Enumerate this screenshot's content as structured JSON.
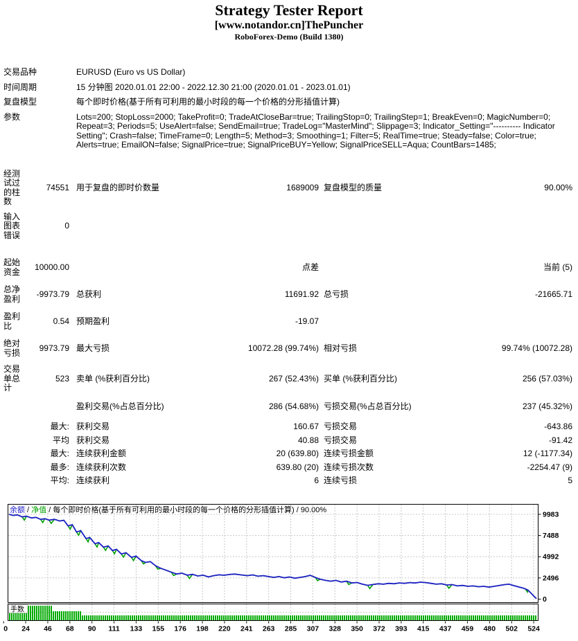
{
  "header": {
    "title": "Strategy Tester Report",
    "subtitle": "[www.notandor.cn]ThePuncher",
    "server": "RoboForex-Demo (Build 1380)"
  },
  "table": {
    "info_rows": [
      {
        "label": "交易品种",
        "value": "EURUSD (Euro vs US Dollar)"
      },
      {
        "label": "时间周期",
        "value": "15 分钟图 2020.01.01 22:00 - 2022.12.30 21:00 (2020.01.01 - 2023.01.01)"
      },
      {
        "label": "复盘模型",
        "value": "每个即时价格(基于所有可利用的最小时段的每一个价格的分形插值计算)"
      },
      {
        "label": "参数",
        "value": "Lots=200; StopLoss=2000; TakeProfit=0; TradeAtCloseBar=true; TrailingStop=0; TrailingStep=1; BreakEven=0; MagicNumber=0; Repeat=3; Periods=5; UseAlert=false; SendEmail=true; TradeLog=\"MasterMind\"; Slippage=3; Indicator_Setting=\"---------- Indicator Setting\"; Crash=false; TimeFrame=0; Length=5; Method=3; Smoothing=1; Filter=5; RealTime=true; Steady=false; Color=true; Alerts=true; EmailON=false; SignalPrice=true; SignalPriceBUY=Yellow; SignalPriceSELL=Aqua; CountBars=1485;"
      }
    ],
    "stat_rows": [
      {
        "c1": "经测试过的柱数",
        "c2": "74551",
        "c3": "用于复盘的即时价数量",
        "c4": "1689009",
        "c5": "复盘模型的质量",
        "c6": "90.00%"
      },
      {
        "c1": "输入图表错误",
        "c2": "0",
        "c3": "",
        "c4": "",
        "c5": "",
        "c6": ""
      },
      {
        "c1": "起始资金",
        "c2": "10000.00",
        "c3": "",
        "c4": "点差",
        "c5": "",
        "c6": "当前 (5)"
      },
      {
        "c1": "总净盈利",
        "c2": "-9973.79",
        "c3": "总获利",
        "c4": "11691.92",
        "c5": "总亏损",
        "c6": "-21665.71"
      },
      {
        "c1": "盈利比",
        "c2": "0.54",
        "c3": "预期盈利",
        "c4": "-19.07",
        "c5": "",
        "c6": ""
      },
      {
        "c1": "绝对亏损",
        "c2": "9973.79",
        "c3": "最大亏损",
        "c4": "10072.28 (99.74%)",
        "c5": "相对亏损",
        "c6": "99.74% (10072.28)"
      },
      {
        "c1": "交易单总计",
        "c2": "523",
        "c3": "卖单 (%获利百分比)",
        "c4": "267 (52.43%)",
        "c5": "买单 (%获利百分比)",
        "c6": "256 (57.03%)"
      },
      {
        "c1": "",
        "c2": "",
        "c3": "盈利交易(%占总百分比)",
        "c4": "286 (54.68%)",
        "c5": "亏损交易(%占总百分比)",
        "c6": "237 (45.32%)"
      },
      {
        "c1": "",
        "c2": "最大:",
        "c3": "获利交易",
        "c4": "160.67",
        "c5": "亏损交易",
        "c6": "-643.86"
      },
      {
        "c1": "",
        "c2": "平均",
        "c3": "获利交易",
        "c4": "40.88",
        "c5": "亏损交易",
        "c6": "-91.42"
      },
      {
        "c1": "",
        "c2": "最大:",
        "c3": "连续获利金额",
        "c4": "20 (639.80)",
        "c5": "连续亏损金额",
        "c6": "12 (-1177.34)"
      },
      {
        "c1": "",
        "c2": "最多:",
        "c3": "连续获利次数",
        "c4": "639.80 (20)",
        "c5": "连续亏损次数",
        "c6": "-2254.47 (9)"
      },
      {
        "c1": "",
        "c2": "平均:",
        "c3": "连续获利",
        "c4": "6",
        "c5": "连续亏损",
        "c6": "5"
      }
    ]
  },
  "chart_data": {
    "type": "line",
    "legend": {
      "balance_label": "余额",
      "separator": " / ",
      "equity_label": "净值",
      "model_text": "每个即时价格(基于所有可利用的最小时段的每一个价格的分形插值计算)",
      "quality": "90.00%"
    },
    "lots_label": "手数",
    "y_ticks": [
      9983,
      7488,
      4992,
      2496,
      0
    ],
    "ylim": [
      0,
      11400
    ],
    "x_ticks": [
      "0",
      "24",
      "46",
      "68",
      "90",
      "111",
      "133",
      "155",
      "176",
      "198",
      "220",
      "241",
      "263",
      "285",
      "307",
      "328",
      "350",
      "372",
      "393",
      "415",
      "437",
      "459",
      "480",
      "502",
      "524"
    ],
    "grid": "dashed",
    "colors": {
      "balance": "#2020C8",
      "equity": "#00A000",
      "lots": "#00AA00",
      "grid": "#C8C8C8",
      "border": "#000000"
    },
    "balance": [
      [
        0,
        9980
      ],
      [
        0.008,
        9850
      ],
      [
        0.016,
        9920
      ],
      [
        0.025,
        9680
      ],
      [
        0.033,
        9760
      ],
      [
        0.043,
        9550
      ],
      [
        0.051,
        9630
      ],
      [
        0.06,
        9390
      ],
      [
        0.068,
        9470
      ],
      [
        0.076,
        9300
      ],
      [
        0.086,
        9400
      ],
      [
        0.096,
        9200
      ],
      [
        0.104,
        9280
      ],
      [
        0.112,
        8620
      ],
      [
        0.12,
        8760
      ],
      [
        0.128,
        7900
      ],
      [
        0.136,
        8060
      ],
      [
        0.146,
        7120
      ],
      [
        0.153,
        7260
      ],
      [
        0.163,
        6520
      ],
      [
        0.17,
        6660
      ],
      [
        0.179,
        6120
      ],
      [
        0.188,
        6260
      ],
      [
        0.196,
        5720
      ],
      [
        0.204,
        5860
      ],
      [
        0.213,
        5320
      ],
      [
        0.222,
        5460
      ],
      [
        0.232,
        4920
      ],
      [
        0.241,
        5060
      ],
      [
        0.251,
        4520
      ],
      [
        0.259,
        4320
      ],
      [
        0.268,
        4420
      ],
      [
        0.278,
        3920
      ],
      [
        0.288,
        3620
      ],
      [
        0.298,
        3400
      ],
      [
        0.308,
        3160
      ],
      [
        0.318,
        2960
      ],
      [
        0.328,
        3060
      ],
      [
        0.338,
        2820
      ],
      [
        0.348,
        2920
      ],
      [
        0.358,
        2720
      ],
      [
        0.368,
        2820
      ],
      [
        0.378,
        2620
      ],
      [
        0.388,
        2760
      ],
      [
        0.398,
        2860
      ],
      [
        0.408,
        2810
      ],
      [
        0.418,
        2900
      ],
      [
        0.428,
        2950
      ],
      [
        0.44,
        2850
      ],
      [
        0.452,
        2760
      ],
      [
        0.462,
        2850
      ],
      [
        0.472,
        2700
      ],
      [
        0.482,
        2760
      ],
      [
        0.492,
        2660
      ],
      [
        0.502,
        2560
      ],
      [
        0.512,
        2660
      ],
      [
        0.522,
        2510
      ],
      [
        0.532,
        2610
      ],
      [
        0.542,
        2460
      ],
      [
        0.552,
        2560
      ],
      [
        0.562,
        2660
      ],
      [
        0.571,
        2800
      ],
      [
        0.581,
        2550
      ],
      [
        0.59,
        2350
      ],
      [
        0.6,
        2210
      ],
      [
        0.61,
        2110
      ],
      [
        0.62,
        2210
      ],
      [
        0.63,
        2010
      ],
      [
        0.64,
        2110
      ],
      [
        0.65,
        1910
      ],
      [
        0.66,
        1960
      ],
      [
        0.67,
        1760
      ],
      [
        0.68,
        1620
      ],
      [
        0.69,
        1720
      ],
      [
        0.7,
        1810
      ],
      [
        0.71,
        1760
      ],
      [
        0.72,
        1860
      ],
      [
        0.73,
        1810
      ],
      [
        0.74,
        1910
      ],
      [
        0.75,
        1860
      ],
      [
        0.76,
        1950
      ],
      [
        0.77,
        1900
      ],
      [
        0.78,
        2000
      ],
      [
        0.79,
        1950
      ],
      [
        0.8,
        1860
      ],
      [
        0.81,
        1760
      ],
      [
        0.82,
        1810
      ],
      [
        0.83,
        1660
      ],
      [
        0.84,
        1710
      ],
      [
        0.85,
        1560
      ],
      [
        0.86,
        1610
      ],
      [
        0.87,
        1510
      ],
      [
        0.88,
        1560
      ],
      [
        0.89,
        1460
      ],
      [
        0.9,
        1510
      ],
      [
        0.91,
        1410
      ],
      [
        0.92,
        1510
      ],
      [
        0.93,
        1610
      ],
      [
        0.94,
        1710
      ],
      [
        0.948,
        1760
      ],
      [
        0.956,
        1610
      ],
      [
        0.962,
        1510
      ],
      [
        0.968,
        1410
      ],
      [
        0.974,
        1310
      ],
      [
        0.979,
        1210
      ],
      [
        0.984,
        1060
      ],
      [
        0.989,
        760
      ],
      [
        0.994,
        420
      ],
      [
        1,
        60
      ]
    ],
    "equity_dip_indices": [
      3,
      7,
      9,
      13,
      15,
      17,
      19,
      21,
      23,
      25,
      27,
      29,
      32,
      35,
      38,
      62,
      68,
      72,
      87,
      104
    ],
    "lots_segments": [
      {
        "until": 0.08,
        "h": 1.0
      },
      {
        "until": 0.135,
        "h": 0.62
      },
      {
        "until": 1.0,
        "h": 0.33
      }
    ]
  }
}
